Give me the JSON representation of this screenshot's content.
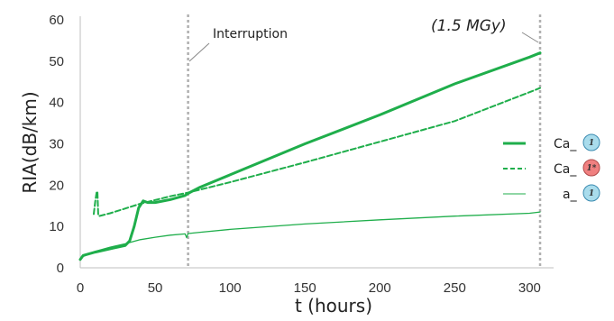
{
  "chart_data": {
    "type": "line",
    "xlabel": "t (hours)",
    "ylabel": "RIA(dB/km)",
    "xlim": [
      0,
      310
    ],
    "ylim": [
      0,
      60
    ],
    "xticks": [
      0,
      50,
      100,
      150,
      200,
      250,
      300
    ],
    "yticks": [
      0,
      10,
      20,
      30,
      40,
      50,
      60
    ],
    "grid": false,
    "legend_position": "right",
    "colors": {
      "line": "#1fae4b",
      "vline": "#b0b0b0"
    },
    "series": [
      {
        "name": "Ca_",
        "badge": "1",
        "badge_color": "#a9dcec",
        "style": "solid-thick",
        "x": [
          0,
          2,
          10,
          20,
          30,
          33,
          36,
          39,
          42,
          45,
          50,
          60,
          70,
          72,
          80,
          100,
          150,
          200,
          250,
          300,
          307
        ],
        "y": [
          2.0,
          3.0,
          3.8,
          4.6,
          5.4,
          6.5,
          10.0,
          14.5,
          16.2,
          15.8,
          15.8,
          16.5,
          17.5,
          18.0,
          19.5,
          22.5,
          30.0,
          37.0,
          44.5,
          51.0,
          52.0
        ]
      },
      {
        "name": "Ca_",
        "badge": "1*",
        "badge_color": "#f08080",
        "style": "dashed",
        "x": [
          9,
          10,
          11,
          11.5,
          12,
          12.5,
          20,
          40,
          60,
          72,
          100,
          150,
          200,
          250,
          300,
          307
        ],
        "y": [
          13.0,
          16.0,
          18.5,
          18.2,
          13.0,
          12.5,
          13.2,
          15.5,
          17.3,
          18.2,
          20.7,
          25.5,
          30.5,
          35.5,
          42.5,
          43.5
        ]
      },
      {
        "name": "a_",
        "badge": "1",
        "badge_color": "#a9dcec",
        "style": "solid-thin",
        "x": [
          0,
          1,
          10,
          20,
          30,
          40,
          50,
          60,
          70,
          71,
          72,
          80,
          100,
          150,
          200,
          250,
          300,
          307
        ],
        "y": [
          2.0,
          2.6,
          4.0,
          5.0,
          5.8,
          6.8,
          7.4,
          7.9,
          8.2,
          7.3,
          8.3,
          8.6,
          9.3,
          10.6,
          11.6,
          12.5,
          13.2,
          13.5
        ]
      }
    ],
    "annotations": [
      {
        "text": "Interruption",
        "x": 72
      },
      {
        "text": "(1.5 MGy)",
        "x": 307
      }
    ],
    "vlines": [
      72,
      307
    ]
  }
}
